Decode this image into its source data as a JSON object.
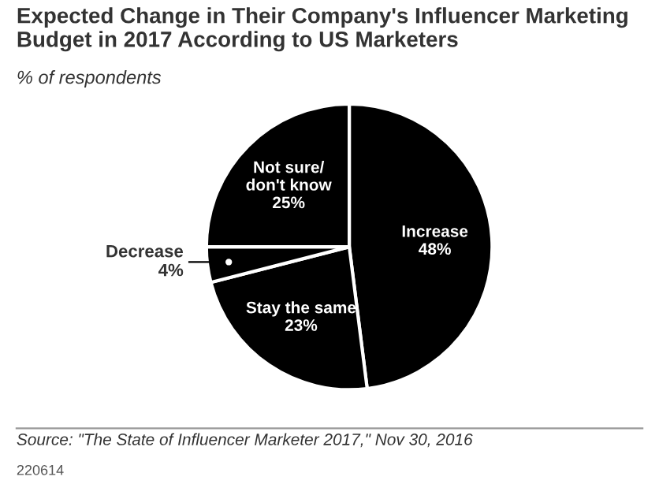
{
  "chart_data": {
    "type": "pie",
    "title": "Expected Change in Their Company's Influencer Marketing Budget in 2017 According to US Marketers",
    "subtitle": "% of respondents",
    "categories": [
      "Increase",
      "Stay the same",
      "Decrease",
      "Not sure/\ndon't know"
    ],
    "values": [
      48,
      23,
      4,
      25
    ],
    "colors": [
      "#000000",
      "#000000",
      "#000000",
      "#000000"
    ],
    "value_labels": [
      "48%",
      "23%",
      "4%",
      "25%"
    ],
    "annotations": [
      "Source: \"The State of Influencer Marketer 2017,\" Nov 30, 2016",
      "220614"
    ]
  }
}
